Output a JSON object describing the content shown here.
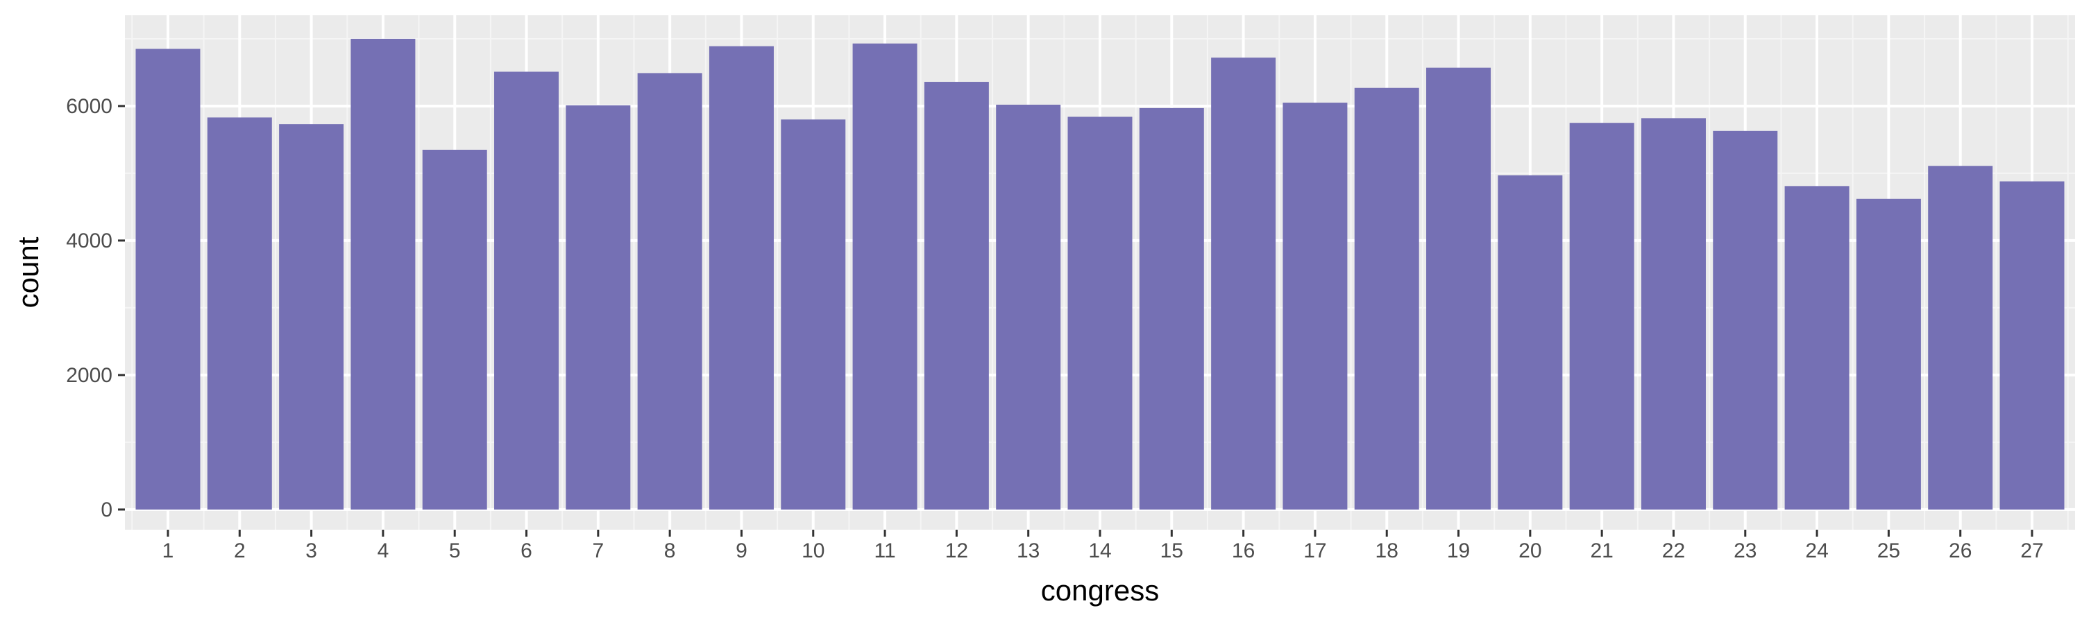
{
  "chart_data": {
    "type": "bar",
    "title": "",
    "xlabel": "congress",
    "ylabel": "count",
    "categories": [
      "1",
      "2",
      "3",
      "4",
      "5",
      "6",
      "7",
      "8",
      "9",
      "10",
      "11",
      "12",
      "13",
      "14",
      "15",
      "16",
      "17",
      "18",
      "19",
      "20",
      "21",
      "22",
      "23",
      "24",
      "25",
      "26",
      "27"
    ],
    "values": [
      6850,
      5830,
      5730,
      7000,
      5350,
      6510,
      6010,
      6490,
      6890,
      5800,
      6930,
      6360,
      6020,
      5840,
      5970,
      6720,
      6050,
      6270,
      6570,
      4970,
      5750,
      5820,
      5630,
      4810,
      4620,
      5110,
      4880
    ],
    "ylim": [
      -300,
      7350
    ],
    "yticks": [
      0,
      2000,
      4000,
      6000
    ],
    "ytick_labels": [
      "0",
      "2000",
      "4000",
      "6000"
    ],
    "grid": true,
    "legend": "none",
    "colors": {
      "bar_fill": "#7570b4",
      "panel_bg": "#ebebeb",
      "grid_major": "#ffffff",
      "grid_minor": "#f5f5f5"
    }
  }
}
